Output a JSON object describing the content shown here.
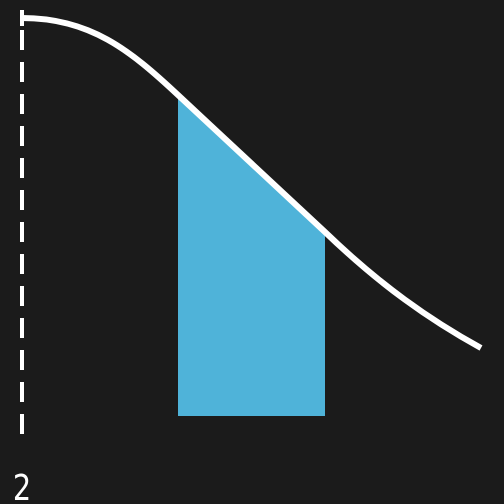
{
  "axis": {
    "label": "2"
  }
}
